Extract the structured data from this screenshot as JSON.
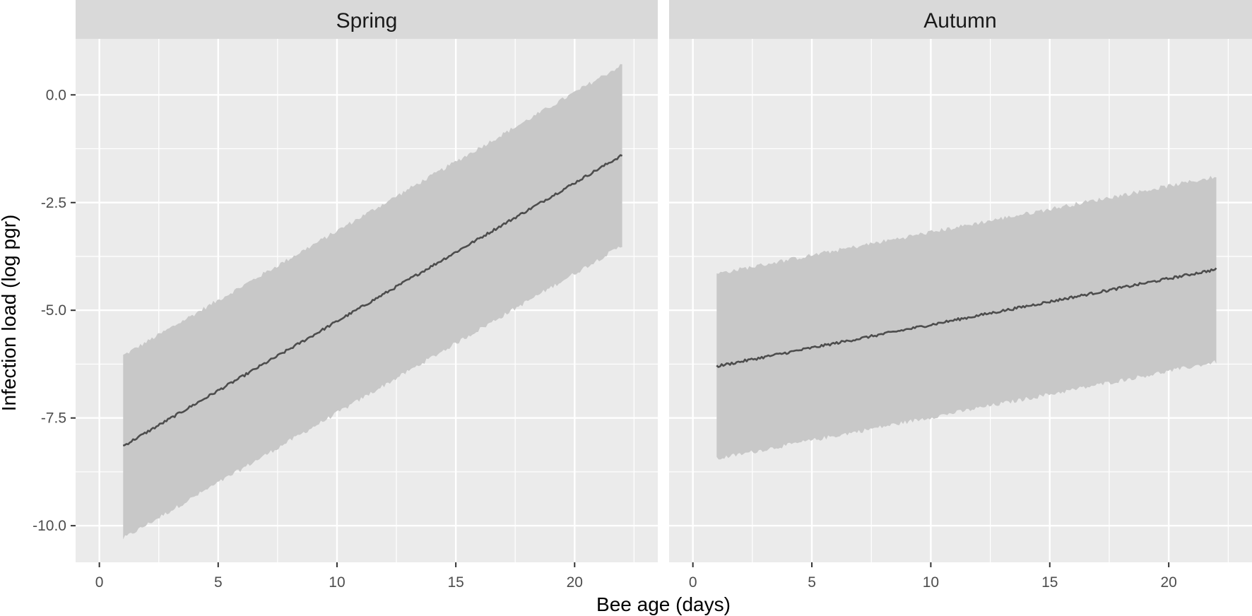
{
  "chart_data": {
    "type": "line",
    "xlabel": "Bee age (days)",
    "ylabel": "Infection load (log pgr)",
    "xlim": [
      0,
      22.5
    ],
    "ylim": [
      -10.85,
      1.3
    ],
    "x_ticks": [
      0,
      5,
      10,
      15,
      20
    ],
    "y_ticks": [
      0.0,
      -2.5,
      -5.0,
      -7.5,
      -10.0
    ],
    "y_tick_labels": [
      "0.0",
      "-2.5",
      "-5.0",
      "-7.5",
      "-10.0"
    ],
    "grid": true,
    "legend": "none",
    "colors": {
      "panel_bg": "#ebebeb",
      "strip_bg": "#d9d9d9",
      "ribbon": "#c8c8c8",
      "line": "#4d4d4d",
      "grid": "#ffffff"
    },
    "panels": [
      {
        "strip": "Spring",
        "x_range": [
          1,
          22
        ],
        "line": {
          "x": [
            1,
            22
          ],
          "y": [
            -8.15,
            -1.4
          ]
        },
        "ribbon": {
          "x": [
            1,
            22
          ],
          "lower": [
            -10.3,
            -3.5
          ],
          "upper": [
            -6.05,
            0.7
          ]
        }
      },
      {
        "strip": "Autumn",
        "x_range": [
          1,
          22
        ],
        "line": {
          "x": [
            1,
            22
          ],
          "y": [
            -6.3,
            -4.05
          ]
        },
        "ribbon": {
          "x": [
            1,
            22
          ],
          "lower": [
            -8.45,
            -6.2
          ],
          "upper": [
            -4.15,
            -1.9
          ]
        }
      }
    ]
  }
}
